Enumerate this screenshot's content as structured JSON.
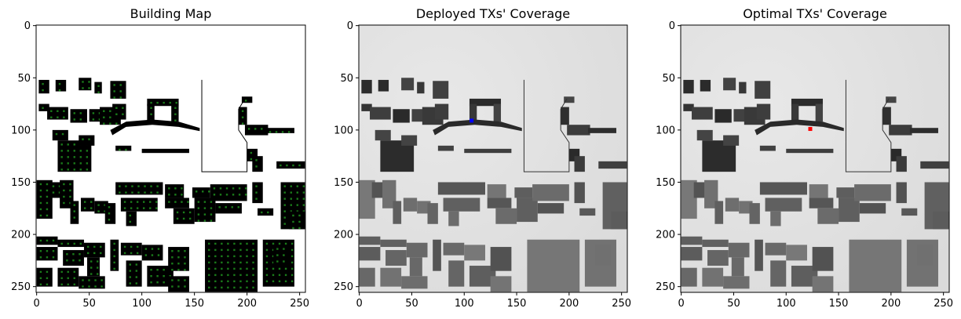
{
  "chart_data": [
    {
      "type": "heatmap",
      "title": "Building Map",
      "xlabel": "",
      "ylabel": "",
      "xlim": [
        0,
        255
      ],
      "ylim": [
        255,
        0
      ],
      "xticks": [
        0,
        50,
        100,
        150,
        200,
        250
      ],
      "yticks": [
        0,
        50,
        100,
        150,
        200,
        250
      ],
      "background_color": "#ffffff",
      "building_color": "#000000",
      "marker_color": "#1a7a1a",
      "grid": false
    },
    {
      "type": "heatmap",
      "title": "Deployed TXs' Coverage",
      "xlabel": "",
      "ylabel": "",
      "xlim": [
        0,
        255
      ],
      "ylim": [
        255,
        0
      ],
      "xticks": [
        0,
        50,
        100,
        150,
        200,
        250
      ],
      "yticks": [
        0,
        50,
        100,
        150,
        200,
        250
      ],
      "colormap": "gray",
      "tx_markers": [
        {
          "x": 107,
          "y": 91,
          "color": "#0000ff"
        }
      ],
      "grid": false
    },
    {
      "type": "heatmap",
      "title": "Optimal TXs' Coverage",
      "xlabel": "",
      "ylabel": "",
      "xlim": [
        0,
        255
      ],
      "ylim": [
        255,
        0
      ],
      "xticks": [
        0,
        50,
        100,
        150,
        200,
        250
      ],
      "yticks": [
        0,
        50,
        100,
        150,
        200,
        250
      ],
      "colormap": "gray",
      "tx_markers": [
        {
          "x": 123,
          "y": 99,
          "color": "#ff0000"
        }
      ],
      "grid": false
    }
  ]
}
